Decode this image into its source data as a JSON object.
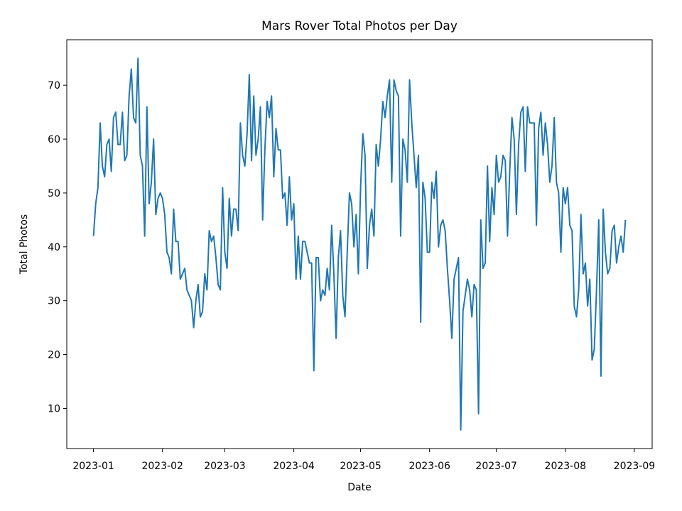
{
  "chart_data": {
    "type": "line",
    "title": "Mars Rover Total Photos per Day",
    "xlabel": "Date",
    "ylabel": "Total Photos",
    "x_ticks": [
      "2023-01-01",
      "2023-02-01",
      "2023-03-01",
      "2023-04-01",
      "2023-05-01",
      "2023-06-01",
      "2023-07-01",
      "2023-08-01",
      "2023-09-01"
    ],
    "x_tick_labels": [
      "2023-01",
      "2023-02",
      "2023-03",
      "2023-04",
      "2023-05",
      "2023-06",
      "2023-07",
      "2023-08",
      "2023-09"
    ],
    "xlim": [
      "2022-12-20",
      "2023-09-09"
    ],
    "y_ticks": [
      10,
      20,
      30,
      40,
      50,
      60,
      70
    ],
    "ylim": [
      2.55,
      78.45
    ],
    "grid": false,
    "color": "#1f77b4",
    "series": [
      {
        "x": [
          "2023-01-01",
          "2023-01-02",
          "2023-01-03",
          "2023-01-04",
          "2023-01-05",
          "2023-01-06",
          "2023-01-07",
          "2023-01-08",
          "2023-01-09",
          "2023-01-10",
          "2023-01-11",
          "2023-01-12",
          "2023-01-13",
          "2023-01-14",
          "2023-01-15",
          "2023-01-16",
          "2023-01-17",
          "2023-01-18",
          "2023-01-19",
          "2023-01-20",
          "2023-01-21",
          "2023-01-22",
          "2023-01-23",
          "2023-01-24",
          "2023-01-25",
          "2023-01-26",
          "2023-01-27",
          "2023-01-28",
          "2023-01-29",
          "2023-01-30",
          "2023-01-31",
          "2023-02-01",
          "2023-02-02",
          "2023-02-03",
          "2023-02-04",
          "2023-02-05",
          "2023-02-06",
          "2023-02-07",
          "2023-02-08",
          "2023-02-09",
          "2023-02-10",
          "2023-02-11",
          "2023-02-12",
          "2023-02-13",
          "2023-02-14",
          "2023-02-15",
          "2023-02-16",
          "2023-02-17",
          "2023-02-18",
          "2023-02-19",
          "2023-02-20",
          "2023-02-21",
          "2023-02-22",
          "2023-02-23",
          "2023-02-24",
          "2023-02-25",
          "2023-02-26",
          "2023-02-27",
          "2023-02-28",
          "2023-03-01",
          "2023-03-02",
          "2023-03-03",
          "2023-03-04",
          "2023-03-05",
          "2023-03-06",
          "2023-03-07",
          "2023-03-08",
          "2023-03-09",
          "2023-03-10",
          "2023-03-11",
          "2023-03-12",
          "2023-03-13",
          "2023-03-14",
          "2023-03-15",
          "2023-03-16",
          "2023-03-17",
          "2023-03-18",
          "2023-03-19",
          "2023-03-20",
          "2023-03-21",
          "2023-03-22",
          "2023-03-23",
          "2023-03-24",
          "2023-03-25",
          "2023-03-26",
          "2023-03-27",
          "2023-03-28",
          "2023-03-29",
          "2023-03-30",
          "2023-03-31",
          "2023-04-01",
          "2023-04-02",
          "2023-04-03",
          "2023-04-04",
          "2023-04-05",
          "2023-04-06",
          "2023-04-07",
          "2023-04-08",
          "2023-04-09",
          "2023-04-10",
          "2023-04-11",
          "2023-04-12",
          "2023-04-13",
          "2023-04-14",
          "2023-04-15",
          "2023-04-16",
          "2023-04-17",
          "2023-04-18",
          "2023-04-19",
          "2023-04-20",
          "2023-04-21",
          "2023-04-22",
          "2023-04-23",
          "2023-04-24",
          "2023-04-25",
          "2023-04-26",
          "2023-04-27",
          "2023-04-28",
          "2023-04-29",
          "2023-04-30",
          "2023-05-01",
          "2023-05-02",
          "2023-05-03",
          "2023-05-04",
          "2023-05-05",
          "2023-05-06",
          "2023-05-07",
          "2023-05-08",
          "2023-05-09",
          "2023-05-10",
          "2023-05-11",
          "2023-05-12",
          "2023-05-13",
          "2023-05-14",
          "2023-05-15",
          "2023-05-16",
          "2023-05-17",
          "2023-05-18",
          "2023-05-19",
          "2023-05-20",
          "2023-05-21",
          "2023-05-22",
          "2023-05-23",
          "2023-05-24",
          "2023-05-25",
          "2023-05-26",
          "2023-05-27",
          "2023-05-28",
          "2023-05-29",
          "2023-05-30",
          "2023-05-31",
          "2023-06-01",
          "2023-06-02",
          "2023-06-03",
          "2023-06-04",
          "2023-06-05",
          "2023-06-06",
          "2023-06-07",
          "2023-06-08",
          "2023-06-09",
          "2023-06-10",
          "2023-06-11",
          "2023-06-12",
          "2023-06-13",
          "2023-06-14",
          "2023-06-15",
          "2023-06-16",
          "2023-06-17",
          "2023-06-18",
          "2023-06-19",
          "2023-06-20",
          "2023-06-21",
          "2023-06-22",
          "2023-06-23",
          "2023-06-24",
          "2023-06-25",
          "2023-06-26",
          "2023-06-27",
          "2023-06-28",
          "2023-06-29",
          "2023-06-30",
          "2023-07-01",
          "2023-07-02",
          "2023-07-03",
          "2023-07-04",
          "2023-07-05",
          "2023-07-06",
          "2023-07-07",
          "2023-07-08",
          "2023-07-09",
          "2023-07-10",
          "2023-07-11",
          "2023-07-12",
          "2023-07-13",
          "2023-07-14",
          "2023-07-15",
          "2023-07-16",
          "2023-07-17",
          "2023-07-18",
          "2023-07-19",
          "2023-07-20",
          "2023-07-21",
          "2023-07-22",
          "2023-07-23",
          "2023-07-24",
          "2023-07-25",
          "2023-07-26",
          "2023-07-27",
          "2023-07-28",
          "2023-07-29",
          "2023-07-30",
          "2023-07-31",
          "2023-08-01",
          "2023-08-02",
          "2023-08-03",
          "2023-08-04",
          "2023-08-05",
          "2023-08-06",
          "2023-08-07",
          "2023-08-08",
          "2023-08-09",
          "2023-08-10",
          "2023-08-11",
          "2023-08-12",
          "2023-08-13",
          "2023-08-14",
          "2023-08-15",
          "2023-08-16",
          "2023-08-17",
          "2023-08-18",
          "2023-08-19",
          "2023-08-20",
          "2023-08-21",
          "2023-08-22",
          "2023-08-23",
          "2023-08-24",
          "2023-08-25",
          "2023-08-26",
          "2023-08-27",
          "2023-08-28"
        ],
        "values": [
          42,
          48,
          51,
          63,
          55,
          53,
          59,
          60,
          54,
          64,
          65,
          59,
          59,
          65,
          56,
          57,
          68,
          73,
          64,
          63,
          75,
          57,
          55,
          42,
          66,
          48,
          52,
          60,
          46,
          49,
          50,
          49,
          46,
          39,
          38,
          35,
          47,
          41,
          41,
          34,
          35,
          36,
          32,
          31,
          30,
          25,
          30,
          33,
          27,
          28,
          35,
          32,
          43,
          41,
          42,
          38,
          33,
          32,
          51,
          39,
          36,
          49,
          42,
          47,
          47,
          43,
          63,
          57,
          55,
          61,
          72,
          56,
          68,
          57,
          60,
          66,
          45,
          58,
          67,
          64,
          68,
          53,
          62,
          58,
          58,
          49,
          50,
          44,
          53,
          45,
          48,
          34,
          42,
          34,
          41,
          41,
          39,
          37,
          37,
          17,
          38,
          38,
          30,
          32,
          31,
          36,
          32,
          44,
          35,
          23,
          38,
          43,
          31,
          27,
          39,
          50,
          48,
          40,
          46,
          35,
          51,
          61,
          57,
          36,
          44,
          47,
          42,
          59,
          55,
          60,
          67,
          64,
          68,
          71,
          52,
          71,
          69,
          68,
          42,
          60,
          58,
          52,
          71,
          63,
          57,
          51,
          57,
          26,
          52,
          49,
          39,
          39,
          52,
          49,
          54,
          40,
          44,
          45,
          43,
          36,
          30,
          23,
          34,
          36,
          38,
          6,
          28,
          31,
          34,
          32,
          27,
          33,
          32,
          9,
          45,
          36,
          37,
          55,
          41,
          51,
          46,
          57,
          52,
          53,
          57,
          56,
          42,
          54,
          64,
          60,
          46,
          59,
          65,
          66,
          54,
          66,
          63,
          63,
          63,
          44,
          62,
          65,
          57,
          63,
          59,
          52,
          55,
          64,
          52,
          50,
          39,
          51,
          48,
          51,
          44,
          43,
          29,
          27,
          32,
          46,
          35,
          37,
          29,
          34,
          19,
          21,
          32,
          45,
          16,
          47,
          39,
          35,
          36,
          43,
          44,
          37,
          40,
          42,
          39,
          45
        ]
      }
    ]
  }
}
